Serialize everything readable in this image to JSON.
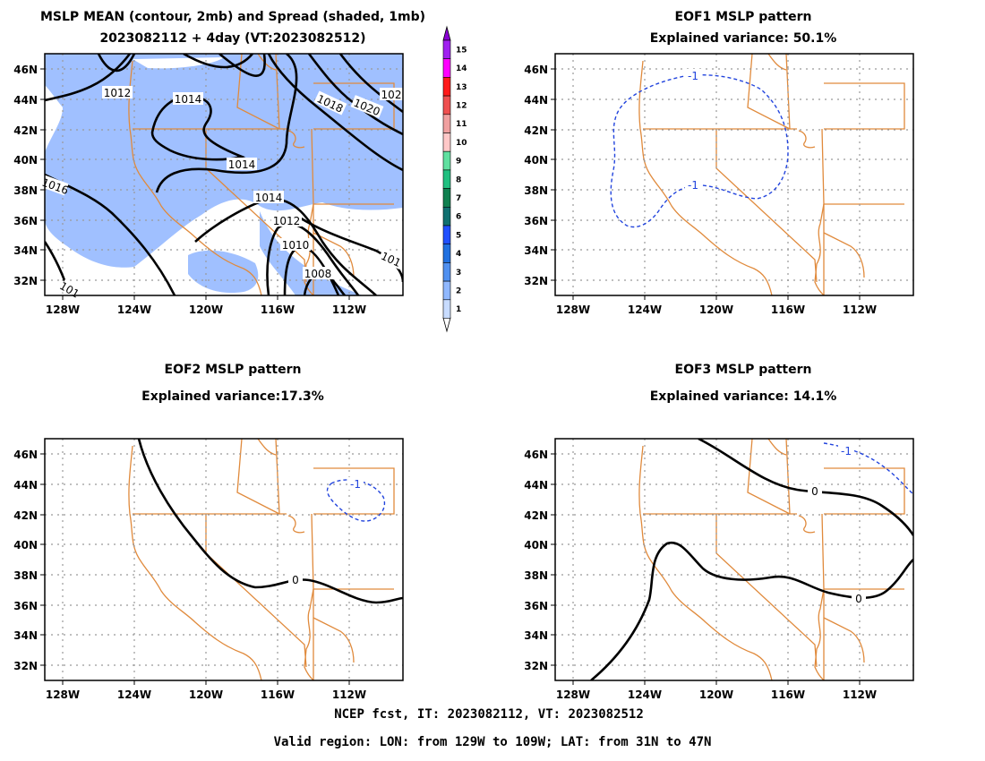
{
  "panels": [
    {
      "id": "mean",
      "title_lines": [
        "MSLP MEAN (contour, 2mb) and Spread (shaded, 1mb)",
        "2023082112 + 4day (VT:2023082512)"
      ],
      "contour_labels": [
        "1012",
        "1014",
        "1014",
        "1014",
        "1012",
        "1010",
        "1008",
        "1016",
        "1018",
        "1020",
        "102",
        "101",
        "101"
      ]
    },
    {
      "id": "eof1",
      "title_lines": [
        "EOF1 MSLP pattern",
        "Explained variance: 50.1%"
      ],
      "contour_labels": [
        "-1",
        "-1"
      ]
    },
    {
      "id": "eof2",
      "title_lines": [
        "EOF2 MSLP pattern",
        "Explained variance:17.3%"
      ],
      "contour_labels": [
        "-1",
        "0"
      ]
    },
    {
      "id": "eof3",
      "title_lines": [
        "EOF3 MSLP pattern",
        "Explained variance: 14.1%"
      ],
      "contour_labels": [
        "-1",
        "0",
        "0"
      ]
    }
  ],
  "lat_ticks": [
    "46N",
    "44N",
    "42N",
    "40N",
    "38N",
    "36N",
    "34N",
    "32N"
  ],
  "lon_ticks": [
    "128W",
    "124W",
    "120W",
    "116W",
    "112W"
  ],
  "colorbar": {
    "labels": [
      "15",
      "14",
      "13",
      "12",
      "11",
      "10",
      "9",
      "8",
      "7",
      "6",
      "5",
      "4",
      "3",
      "2",
      "1"
    ],
    "colors": [
      "#a020f0",
      "#ff00ff",
      "#ff1a1a",
      "#ef5050",
      "#f0a0a0",
      "#ffc8c8",
      "#60e0a0",
      "#20c080",
      "#108050",
      "#107070",
      "#2050ff",
      "#2070e0",
      "#5090f0",
      "#90b8ff",
      "#c8dcff"
    ]
  },
  "spread_color": "#a0c0ff",
  "state_line_color": "#e08a3c",
  "eof_dash_color": "#2244dd",
  "footer": {
    "line1": "NCEP fcst, IT: 2023082112, VT: 2023082512",
    "line2": "Valid region: LON: from 129W to 109W; LAT: from 31N to 47N"
  }
}
